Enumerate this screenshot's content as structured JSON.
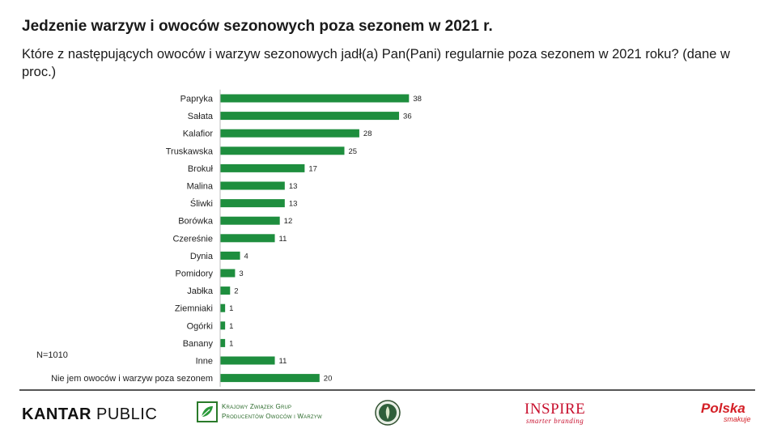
{
  "title": "Jedzenie warzyw i owoców sezonowych poza sezonem w 2021 r.",
  "subtitle": "Które z następujących owoców i warzyw sezonowych jadł(a) Pan(Pani) regularnie poza sezonem w 2021 roku? (dane w proc.)",
  "note": "N=1010",
  "chart_data": {
    "type": "bar",
    "orientation": "horizontal",
    "categories": [
      "Papryka",
      "Sałata",
      "Kalafior",
      "Truskawska",
      "Brokuł",
      "Malina",
      "Śliwki",
      "Borówka",
      "Czereśnie",
      "Dynia",
      "Pomidory",
      "Jabłka",
      "Ziemniaki",
      "Ogórki",
      "Banany",
      "Inne",
      "Nie jem owoców i warzyw poza sezonem"
    ],
    "values": [
      38,
      36,
      28,
      25,
      17,
      13,
      13,
      12,
      11,
      4,
      3,
      2,
      1,
      1,
      1,
      11,
      20
    ],
    "unit": "proc.",
    "bar_color": "#1e8e3e",
    "grid": false,
    "legend": "none"
  },
  "footer": {
    "kantar_strong": "KANTAR",
    "kantar_light": " PUBLIC",
    "kzgp_line1": "Krajowy Związek Grup",
    "kzgp_line2": "Producentów Owoców i Warzyw",
    "inspire_name": "INSPIRE",
    "inspire_tag": "smarter branding",
    "polska_name": "Polska",
    "polska_sub": "smakuje",
    "logo_icon": "kzgp-leaf-icon",
    "seal_icon": "seal-emblem-icon"
  }
}
